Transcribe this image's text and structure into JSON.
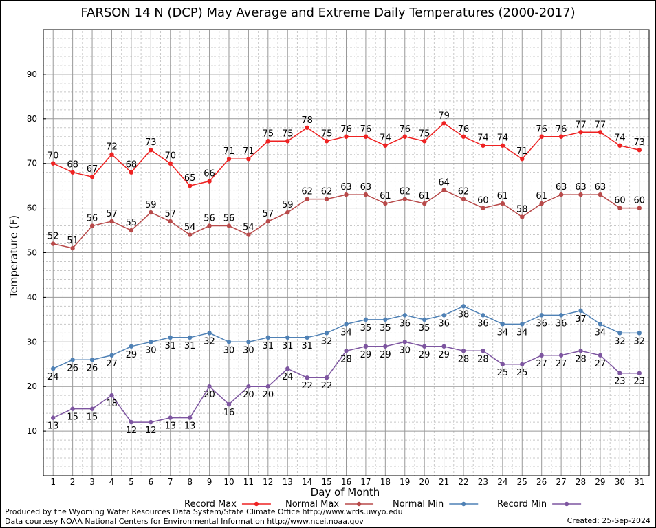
{
  "chart_data": {
    "type": "line",
    "title": "FARSON 14 N (DCP) May Average and Extreme Daily Temperatures (2000-2017)",
    "xlabel": "Day of Month",
    "ylabel": "Temperature (F)",
    "xlim": [
      0.5,
      31.5
    ],
    "ylim": [
      0,
      100
    ],
    "x": [
      1,
      2,
      3,
      4,
      5,
      6,
      7,
      8,
      9,
      10,
      11,
      12,
      13,
      14,
      15,
      16,
      17,
      18,
      19,
      20,
      21,
      22,
      23,
      24,
      25,
      26,
      27,
      28,
      29,
      30,
      31
    ],
    "yticks": [
      10,
      20,
      30,
      40,
      50,
      60,
      70,
      80,
      90
    ],
    "grid": true,
    "legend_position": "bottom",
    "series": [
      {
        "name": "Record Max",
        "color": "#ee2222",
        "label_pos": "above",
        "values": [
          70,
          68,
          67,
          72,
          68,
          73,
          70,
          65,
          66,
          71,
          71,
          75,
          75,
          78,
          75,
          76,
          76,
          74,
          76,
          75,
          79,
          76,
          74,
          74,
          71,
          76,
          76,
          77,
          77,
          74,
          73
        ]
      },
      {
        "name": "Normal Max",
        "color": "#b84a4a",
        "label_pos": "above",
        "values": [
          52,
          51,
          56,
          57,
          55,
          59,
          57,
          54,
          56,
          56,
          54,
          57,
          59,
          62,
          62,
          63,
          63,
          61,
          62,
          61,
          64,
          62,
          60,
          61,
          58,
          61,
          63,
          63,
          63,
          60,
          60
        ]
      },
      {
        "name": "Normal Min",
        "color": "#4f81b5",
        "label_pos": "below",
        "values": [
          24,
          26,
          26,
          27,
          29,
          30,
          31,
          31,
          32,
          30,
          30,
          31,
          31,
          31,
          32,
          34,
          35,
          35,
          36,
          35,
          36,
          38,
          36,
          34,
          34,
          36,
          36,
          37,
          34,
          32,
          32
        ]
      },
      {
        "name": "Record Min",
        "color": "#7d55a0",
        "label_pos": "below",
        "values": [
          13,
          15,
          15,
          18,
          12,
          12,
          13,
          13,
          20,
          16,
          20,
          20,
          24,
          22,
          22,
          28,
          29,
          29,
          30,
          29,
          29,
          28,
          28,
          25,
          25,
          27,
          27,
          28,
          27,
          23,
          23
        ]
      }
    ]
  },
  "footer": {
    "credit1": "Produced by the Wyoming Water Resources Data System/State Climate Office http://www.wrds.uwyo.edu",
    "credit2": "Data courtesy NOAA National Centers for Environmental Information http://www.ncei.noaa.gov",
    "created": "Created:  25-Sep-2024"
  }
}
